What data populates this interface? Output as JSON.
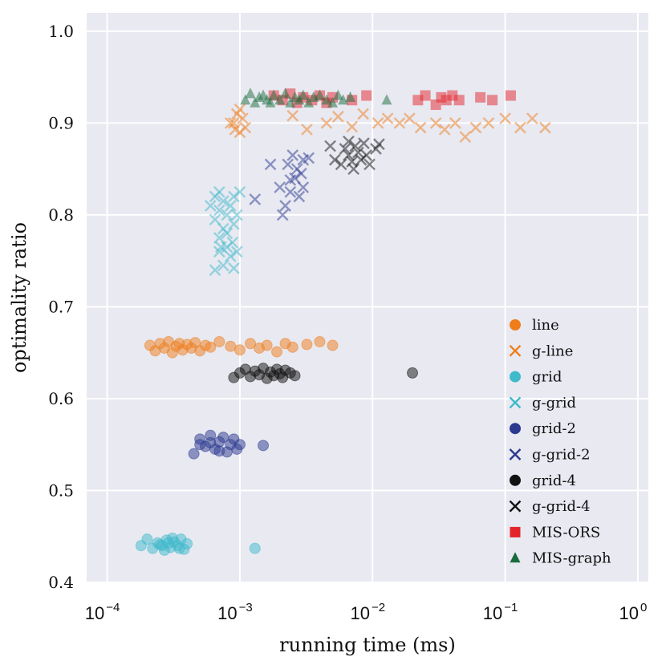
{
  "chart_data": {
    "type": "scatter",
    "xscale": "log",
    "xlabel": "running time (ms)",
    "ylabel": "optimality ratio",
    "xlim": [
      7e-05,
      1.2
    ],
    "ylim": [
      0.4,
      1.02
    ],
    "x_ticks": [
      {
        "value": 0.0001,
        "base": "10",
        "exp": "−4"
      },
      {
        "value": 0.001,
        "base": "10",
        "exp": "−3"
      },
      {
        "value": 0.01,
        "base": "10",
        "exp": "−2"
      },
      {
        "value": 0.1,
        "base": "10",
        "exp": "−1"
      },
      {
        "value": 1,
        "base": "10",
        "exp": "0"
      }
    ],
    "y_ticks": [
      "0.4",
      "0.5",
      "0.6",
      "0.7",
      "0.8",
      "0.9",
      "1.0"
    ],
    "grid": true,
    "legend_position": "lower-right",
    "series": [
      {
        "name": "line",
        "marker": "circle",
        "color": "#f07d1b",
        "points": [
          [
            0.00021,
            0.658
          ],
          [
            0.00023,
            0.652
          ],
          [
            0.00025,
            0.66
          ],
          [
            0.00027,
            0.655
          ],
          [
            0.00029,
            0.662
          ],
          [
            0.00031,
            0.65
          ],
          [
            0.00033,
            0.657
          ],
          [
            0.00035,
            0.66
          ],
          [
            0.00037,
            0.653
          ],
          [
            0.0004,
            0.659
          ],
          [
            0.00043,
            0.655
          ],
          [
            0.00046,
            0.661
          ],
          [
            0.0005,
            0.652
          ],
          [
            0.00055,
            0.658
          ],
          [
            0.0006,
            0.656
          ],
          [
            0.0007,
            0.662
          ],
          [
            0.00085,
            0.657
          ],
          [
            0.001,
            0.653
          ],
          [
            0.0012,
            0.66
          ],
          [
            0.0014,
            0.655
          ],
          [
            0.0016,
            0.658
          ],
          [
            0.0019,
            0.651
          ],
          [
            0.0022,
            0.66
          ],
          [
            0.0025,
            0.656
          ],
          [
            0.0032,
            0.659
          ],
          [
            0.004,
            0.662
          ],
          [
            0.005,
            0.658
          ]
        ]
      },
      {
        "name": "g-line",
        "marker": "x",
        "color": "#f07d1b",
        "points": [
          [
            0.0009,
            0.9
          ],
          [
            0.00095,
            0.91
          ],
          [
            0.001,
            0.89
          ],
          [
            0.00105,
            0.905
          ],
          [
            0.0011,
            0.895
          ],
          [
            0.00085,
            0.9
          ],
          [
            0.00092,
            0.893
          ],
          [
            0.001,
            0.915
          ],
          [
            0.0025,
            0.908
          ],
          [
            0.0032,
            0.893
          ],
          [
            0.0045,
            0.9
          ],
          [
            0.0055,
            0.907
          ],
          [
            0.007,
            0.896
          ],
          [
            0.0085,
            0.91
          ],
          [
            0.011,
            0.9
          ],
          [
            0.013,
            0.905
          ],
          [
            0.016,
            0.9
          ],
          [
            0.019,
            0.905
          ],
          [
            0.023,
            0.895
          ],
          [
            0.03,
            0.9
          ],
          [
            0.035,
            0.893
          ],
          [
            0.042,
            0.9
          ],
          [
            0.05,
            0.885
          ],
          [
            0.06,
            0.895
          ],
          [
            0.075,
            0.9
          ],
          [
            0.1,
            0.905
          ],
          [
            0.13,
            0.895
          ],
          [
            0.16,
            0.905
          ],
          [
            0.2,
            0.895
          ]
        ]
      },
      {
        "name": "grid",
        "marker": "circle",
        "color": "#3fbacb",
        "points": [
          [
            0.00018,
            0.44
          ],
          [
            0.0002,
            0.447
          ],
          [
            0.00022,
            0.437
          ],
          [
            0.00024,
            0.443
          ],
          [
            0.00026,
            0.44
          ],
          [
            0.00028,
            0.446
          ],
          [
            0.0003,
            0.438
          ],
          [
            0.00032,
            0.444
          ],
          [
            0.00034,
            0.44
          ],
          [
            0.00036,
            0.447
          ],
          [
            0.00038,
            0.436
          ],
          [
            0.0004,
            0.442
          ],
          [
            0.00027,
            0.435
          ],
          [
            0.00031,
            0.448
          ],
          [
            0.00025,
            0.441
          ],
          [
            0.00029,
            0.443
          ],
          [
            0.00035,
            0.437
          ],
          [
            0.0013,
            0.437
          ]
        ]
      },
      {
        "name": "g-grid",
        "marker": "x",
        "color": "#3fbacb",
        "points": [
          [
            0.00065,
            0.74
          ],
          [
            0.0007,
            0.76
          ],
          [
            0.00075,
            0.745
          ],
          [
            0.0008,
            0.765
          ],
          [
            0.00085,
            0.755
          ],
          [
            0.0009,
            0.742
          ],
          [
            0.00095,
            0.76
          ],
          [
            0.0007,
            0.775
          ],
          [
            0.00075,
            0.785
          ],
          [
            0.0008,
            0.8
          ],
          [
            0.0009,
            0.79
          ],
          [
            0.0006,
            0.81
          ],
          [
            0.00065,
            0.82
          ],
          [
            0.0007,
            0.825
          ],
          [
            0.00075,
            0.815
          ],
          [
            0.00085,
            0.81
          ],
          [
            0.0009,
            0.82
          ],
          [
            0.001,
            0.825
          ],
          [
            0.00065,
            0.795
          ],
          [
            0.0007,
            0.805
          ],
          [
            0.0008,
            0.78
          ],
          [
            0.00095,
            0.8
          ],
          [
            0.00088,
            0.77
          ],
          [
            0.00072,
            0.765
          ]
        ]
      },
      {
        "name": "grid-2",
        "marker": "circle",
        "color": "#2b3990",
        "points": [
          [
            0.00045,
            0.54
          ],
          [
            0.0005,
            0.556
          ],
          [
            0.00055,
            0.548
          ],
          [
            0.0006,
            0.56
          ],
          [
            0.00065,
            0.545
          ],
          [
            0.0007,
            0.553
          ],
          [
            0.00075,
            0.558
          ],
          [
            0.0008,
            0.542
          ],
          [
            0.00085,
            0.55
          ],
          [
            0.0009,
            0.556
          ],
          [
            0.00095,
            0.545
          ],
          [
            0.001,
            0.55
          ],
          [
            0.0006,
            0.552
          ],
          [
            0.0007,
            0.543
          ],
          [
            0.0005,
            0.55
          ],
          [
            0.0015,
            0.549
          ]
        ]
      },
      {
        "name": "g-grid-2",
        "marker": "x",
        "color": "#2b3990",
        "points": [
          [
            0.0013,
            0.817
          ],
          [
            0.0017,
            0.855
          ],
          [
            0.002,
            0.83
          ],
          [
            0.0022,
            0.81
          ],
          [
            0.0024,
            0.825
          ],
          [
            0.0026,
            0.84
          ],
          [
            0.0028,
            0.82
          ],
          [
            0.003,
            0.83
          ],
          [
            0.0023,
            0.855
          ],
          [
            0.0025,
            0.865
          ],
          [
            0.0027,
            0.85
          ],
          [
            0.003,
            0.86
          ],
          [
            0.0033,
            0.862
          ],
          [
            0.0021,
            0.8
          ],
          [
            0.0029,
            0.845
          ],
          [
            0.0024,
            0.838
          ]
        ]
      },
      {
        "name": "grid-4",
        "marker": "circle",
        "color": "#111111",
        "points": [
          [
            0.0009,
            0.623
          ],
          [
            0.001,
            0.628
          ],
          [
            0.0011,
            0.632
          ],
          [
            0.0012,
            0.624
          ],
          [
            0.0013,
            0.63
          ],
          [
            0.0014,
            0.626
          ],
          [
            0.0015,
            0.633
          ],
          [
            0.0016,
            0.622
          ],
          [
            0.0017,
            0.629
          ],
          [
            0.0018,
            0.625
          ],
          [
            0.0019,
            0.632
          ],
          [
            0.002,
            0.627
          ],
          [
            0.0021,
            0.623
          ],
          [
            0.0022,
            0.631
          ],
          [
            0.0024,
            0.628
          ],
          [
            0.0026,
            0.625
          ],
          [
            0.02,
            0.628
          ]
        ]
      },
      {
        "name": "g-grid-4",
        "marker": "x",
        "color": "#111111",
        "points": [
          [
            0.0048,
            0.875
          ],
          [
            0.0052,
            0.86
          ],
          [
            0.0058,
            0.855
          ],
          [
            0.0062,
            0.872
          ],
          [
            0.0066,
            0.865
          ],
          [
            0.007,
            0.858
          ],
          [
            0.0074,
            0.875
          ],
          [
            0.0078,
            0.868
          ],
          [
            0.0082,
            0.86
          ],
          [
            0.0086,
            0.878
          ],
          [
            0.009,
            0.865
          ],
          [
            0.0095,
            0.855
          ],
          [
            0.0072,
            0.85
          ],
          [
            0.0066,
            0.88
          ],
          [
            0.0106,
            0.872
          ],
          [
            0.0112,
            0.877
          ]
        ]
      },
      {
        "name": "MIS-ORS",
        "marker": "square",
        "color": "#e3242b",
        "points": [
          [
            0.0018,
            0.93
          ],
          [
            0.0021,
            0.925
          ],
          [
            0.0024,
            0.932
          ],
          [
            0.0027,
            0.922
          ],
          [
            0.003,
            0.928
          ],
          [
            0.0035,
            0.925
          ],
          [
            0.004,
            0.93
          ],
          [
            0.0045,
            0.922
          ],
          [
            0.005,
            0.928
          ],
          [
            0.007,
            0.925
          ],
          [
            0.009,
            0.93
          ],
          [
            0.022,
            0.925
          ],
          [
            0.025,
            0.93
          ],
          [
            0.03,
            0.92
          ],
          [
            0.033,
            0.928
          ],
          [
            0.036,
            0.925
          ],
          [
            0.04,
            0.93
          ],
          [
            0.045,
            0.925
          ],
          [
            0.065,
            0.928
          ],
          [
            0.08,
            0.925
          ],
          [
            0.11,
            0.93
          ]
        ]
      },
      {
        "name": "MIS-graph",
        "marker": "triangle",
        "color": "#1a6b3e",
        "points": [
          [
            0.0011,
            0.925
          ],
          [
            0.0012,
            0.932
          ],
          [
            0.0013,
            0.922
          ],
          [
            0.0014,
            0.928
          ],
          [
            0.0015,
            0.93
          ],
          [
            0.0016,
            0.925
          ],
          [
            0.0017,
            0.922
          ],
          [
            0.0018,
            0.93
          ],
          [
            0.002,
            0.925
          ],
          [
            0.0022,
            0.932
          ],
          [
            0.0024,
            0.922
          ],
          [
            0.0026,
            0.928
          ],
          [
            0.0028,
            0.925
          ],
          [
            0.003,
            0.93
          ],
          [
            0.0033,
            0.922
          ],
          [
            0.0036,
            0.928
          ],
          [
            0.004,
            0.93
          ],
          [
            0.0045,
            0.925
          ],
          [
            0.005,
            0.922
          ],
          [
            0.0055,
            0.93
          ],
          [
            0.006,
            0.925
          ],
          [
            0.0068,
            0.928
          ],
          [
            0.0128,
            0.925
          ]
        ]
      }
    ]
  }
}
